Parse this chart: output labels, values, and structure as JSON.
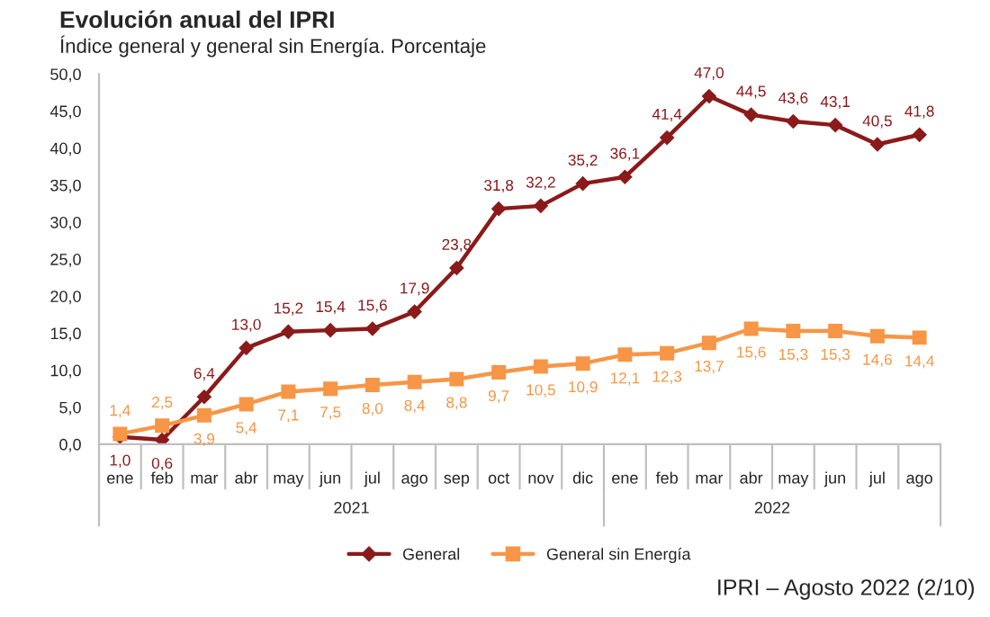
{
  "chart_data": {
    "type": "line",
    "title": "Evolución anual del IPRI",
    "subtitle": "Índice general y general sin Energía. Porcentaje",
    "categories": [
      "ene",
      "feb",
      "mar",
      "abr",
      "may",
      "jun",
      "jul",
      "ago",
      "sep",
      "oct",
      "nov",
      "dic",
      "ene",
      "feb",
      "mar",
      "abr",
      "may",
      "jun",
      "jul",
      "ago"
    ],
    "series": [
      {
        "name": "General",
        "color": "#8b1a1a",
        "marker": "diamond",
        "values": [
          1.0,
          0.6,
          6.4,
          13.0,
          15.2,
          15.4,
          15.6,
          17.9,
          23.8,
          31.8,
          32.2,
          35.2,
          36.1,
          41.4,
          47.0,
          44.5,
          43.6,
          43.1,
          40.5,
          41.8
        ],
        "value_labels": [
          "1,0",
          "0,6",
          "6,4",
          "13,0",
          "15,2",
          "15,4",
          "15,6",
          "17,9",
          "23,8",
          "31,8",
          "32,2",
          "35,2",
          "36,1",
          "41,4",
          "47,0",
          "44,5",
          "43,6",
          "43,1",
          "40,5",
          "41,8"
        ]
      },
      {
        "name": "General sin Energía",
        "color": "#f79646",
        "marker": "square",
        "values": [
          1.4,
          2.5,
          3.9,
          5.4,
          7.1,
          7.5,
          8.0,
          8.4,
          8.8,
          9.7,
          10.5,
          10.9,
          12.1,
          12.3,
          13.7,
          15.6,
          15.3,
          15.3,
          14.6,
          14.4
        ],
        "value_labels": [
          "1,4",
          "2,5",
          "3,9",
          "5,4",
          "7,1",
          "7,5",
          "8,0",
          "8,4",
          "8,8",
          "9,7",
          "10,5",
          "10,9",
          "12,1",
          "12,3",
          "13,7",
          "15,6",
          "15,3",
          "15,3",
          "14,6",
          "14,4"
        ]
      }
    ],
    "ylim": [
      0,
      50
    ],
    "yticks": [
      {
        "value": 0,
        "label": "0,0"
      },
      {
        "value": 5,
        "label": "5,0"
      },
      {
        "value": 10,
        "label": "10,0"
      },
      {
        "value": 15,
        "label": "15,0"
      },
      {
        "value": 20,
        "label": "20,0"
      },
      {
        "value": 25,
        "label": "25,0"
      },
      {
        "value": 30,
        "label": "30,0"
      },
      {
        "value": 35,
        "label": "35,0"
      },
      {
        "value": 40,
        "label": "40,0"
      },
      {
        "value": 45,
        "label": "45,0"
      },
      {
        "value": 50,
        "label": "50,0"
      }
    ],
    "grid": false,
    "legend": "bottom",
    "annotations": [
      "2021",
      "2022",
      "IPRI – Agosto 2022 (2/10)"
    ]
  }
}
